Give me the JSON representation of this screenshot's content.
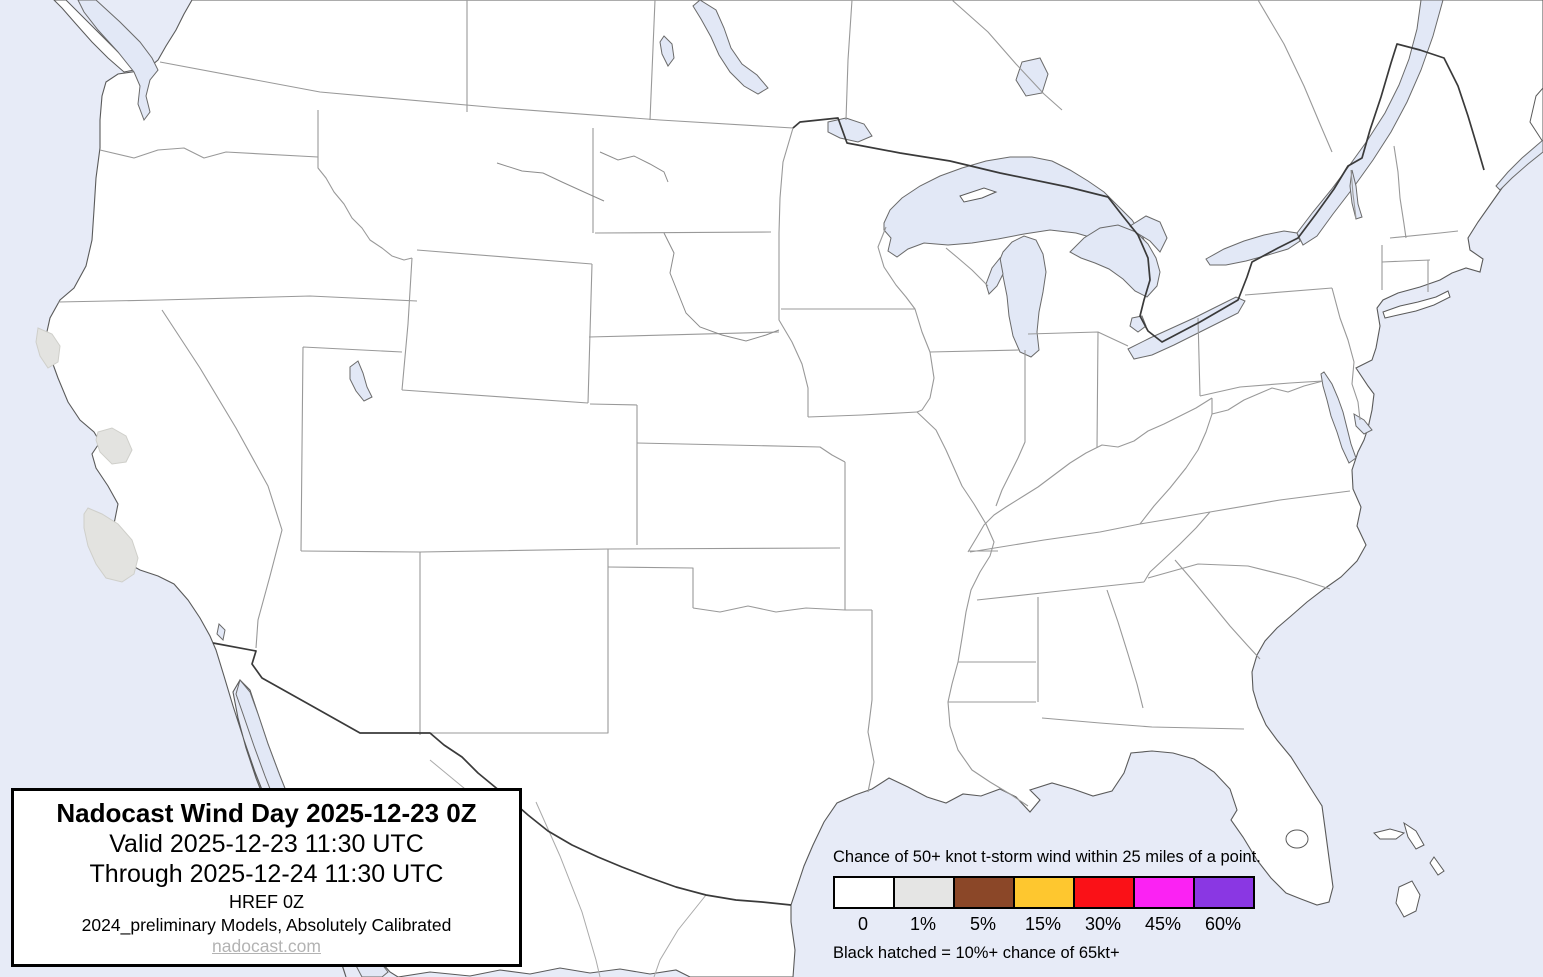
{
  "title_box": {
    "title": "Nadocast Wind Day 2025-12-23 0Z",
    "valid": "Valid 2025-12-23 11:30 UTC",
    "through": "Through 2025-12-24 11:30 UTC",
    "model": "HREF 0Z",
    "calibration": "2024_preliminary Models, Absolutely Calibrated",
    "site": "nadocast.com"
  },
  "legend": {
    "heading": "Chance of 50+ knot t-storm wind within 25 miles of a point.",
    "items": [
      {
        "label": "0",
        "color": "#FFFFFF"
      },
      {
        "label": "1%",
        "color": "#E5E5E4"
      },
      {
        "label": "5%",
        "color": "#8B4728"
      },
      {
        "label": "15%",
        "color": "#FEC72F"
      },
      {
        "label": "30%",
        "color": "#FA1117"
      },
      {
        "label": "45%",
        "color": "#FB22F3"
      },
      {
        "label": "60%",
        "color": "#8A37E3"
      }
    ],
    "footnote": "Black hatched = 10%+ chance of 65kt+"
  },
  "map": {
    "colors": {
      "ocean": "#E7EBF7",
      "land": "#FFFFFF",
      "lake": "#E2E8F6",
      "state": "#999999",
      "nat": "#3A3A3A",
      "coast": "#5A5A5A",
      "p1": "#E3E3E0"
    }
  }
}
